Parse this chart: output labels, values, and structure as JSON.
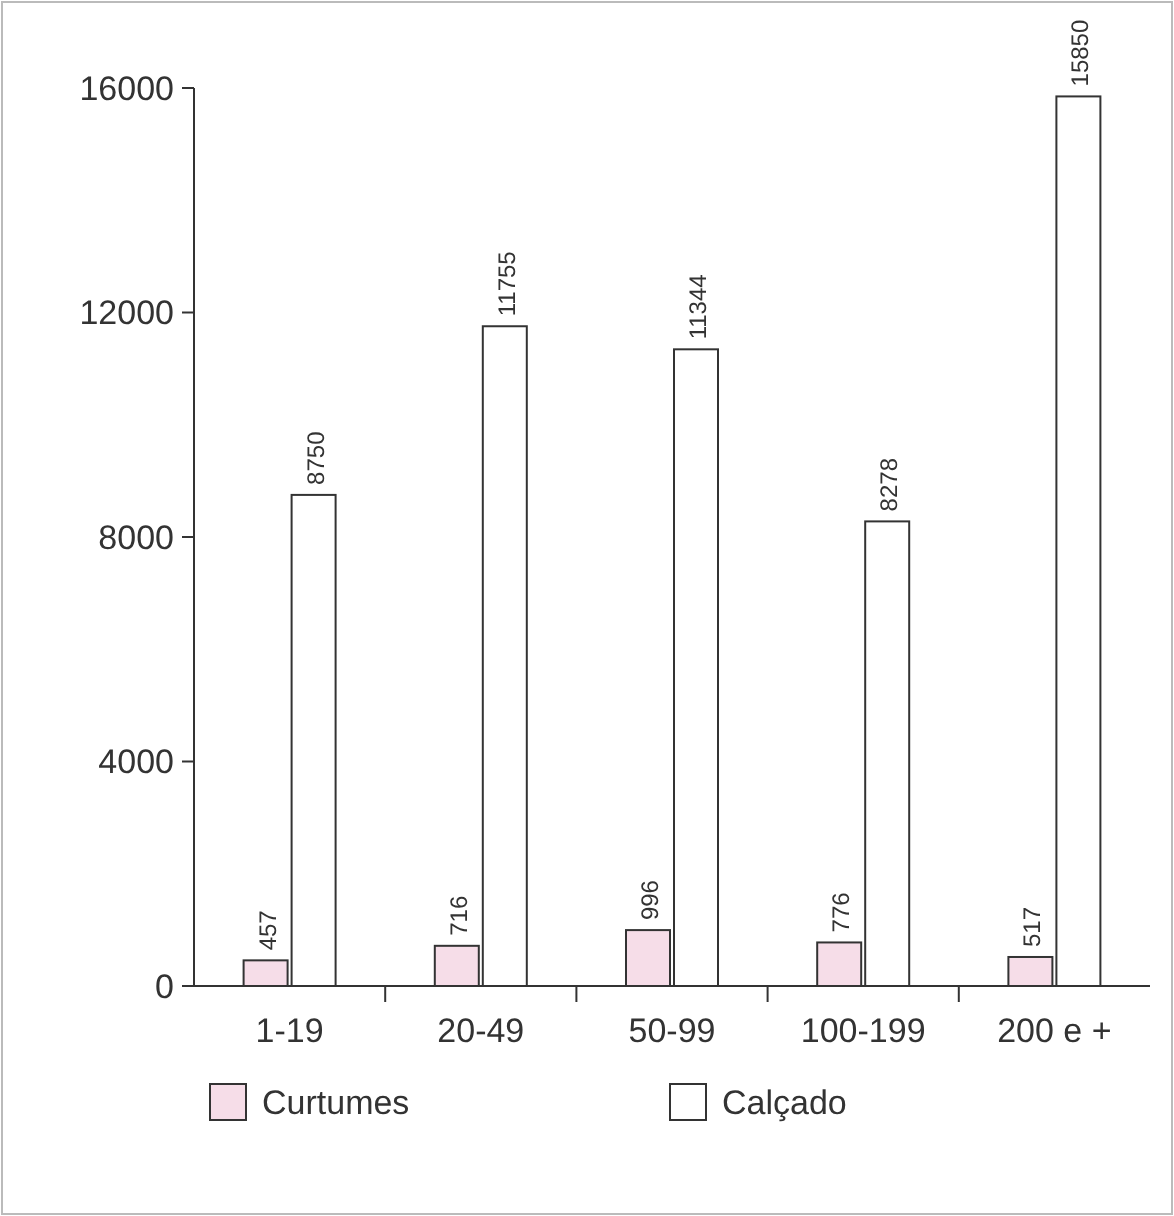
{
  "chart_data": {
    "type": "bar",
    "categories": [
      "1-19",
      "20-49",
      "50-99",
      "100-199",
      "200 e +"
    ],
    "series": [
      {
        "name": "Curtumes",
        "color": "#f6dde8",
        "values": [
          457,
          716,
          996,
          776,
          517
        ]
      },
      {
        "name": "Calçado",
        "color": "#ffffff",
        "values": [
          8750,
          11755,
          11344,
          8278,
          15850
        ]
      }
    ],
    "ylim": [
      0,
      16000
    ],
    "yticks": [
      0,
      4000,
      8000,
      12000,
      16000
    ],
    "data_labels": true,
    "legend": "bottom",
    "grid": false
  }
}
